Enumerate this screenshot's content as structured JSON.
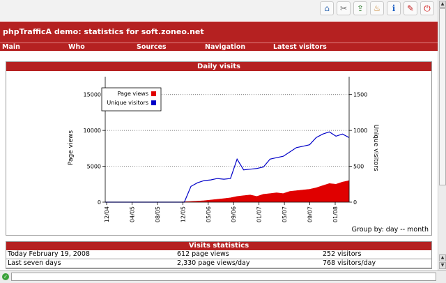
{
  "toolbar": {
    "buttons": [
      {
        "name": "home-icon",
        "glyph": "⌂",
        "color": "#3a6fb5"
      },
      {
        "name": "tools-icon",
        "glyph": "✂",
        "color": "#777777"
      },
      {
        "name": "export-icon",
        "glyph": "⇪",
        "color": "#2a7a2a"
      },
      {
        "name": "cake-icon",
        "glyph": "♨",
        "color": "#c47a1c"
      },
      {
        "name": "info-icon",
        "glyph": "i",
        "color": "#1c5fc4"
      },
      {
        "name": "edit-icon",
        "glyph": "✎",
        "color": "#c42020"
      },
      {
        "name": "power-icon",
        "glyph": "⏻",
        "color": "#d01818"
      }
    ]
  },
  "header": {
    "title": "phpTrafficA demo: statistics for soft.zoneo.net"
  },
  "nav": {
    "items": [
      "Main",
      "Who",
      "Sources",
      "Navigation",
      "Latest visitors"
    ]
  },
  "daily_panel": {
    "title": "Daily visits",
    "group_by": "Group by: day -- month"
  },
  "colors": {
    "page_views": "#e00000",
    "unique_visitors": "#0000c8",
    "accent": "#b52121"
  },
  "chart_data": {
    "type": "area",
    "x_ticks": [
      "12/04",
      "04/05",
      "08/05",
      "12/05",
      "05/06",
      "09/06",
      "01/07",
      "05/07",
      "09/07",
      "01/08"
    ],
    "ylabel": "Page views",
    "ylabel_right": "Unique visitors",
    "ylim": [
      0,
      17500
    ],
    "y_ticks": [
      0,
      5000,
      10000,
      15000
    ],
    "ylim_right": [
      0,
      1750
    ],
    "y_ticks_right": [
      0,
      500,
      1000,
      1500
    ],
    "grid": true,
    "legend_position": "top-left",
    "series": [
      {
        "name": "Page views",
        "axis": "left",
        "values": [
          0,
          0,
          0,
          0,
          0,
          0,
          0,
          0,
          0,
          0,
          0,
          0,
          50,
          100,
          150,
          200,
          300,
          400,
          500,
          600,
          800,
          900,
          1000,
          800,
          1100,
          1200,
          1300,
          1200,
          1500,
          1600,
          1700,
          1800,
          2000,
          2300,
          2600,
          2500,
          2800,
          3000
        ]
      },
      {
        "name": "Unique visitors",
        "axis": "right",
        "values": [
          0,
          0,
          0,
          0,
          0,
          0,
          0,
          0,
          0,
          0,
          0,
          0,
          0,
          220,
          270,
          300,
          310,
          330,
          320,
          330,
          600,
          450,
          460,
          470,
          490,
          600,
          620,
          640,
          700,
          760,
          780,
          800,
          900,
          950,
          980,
          920,
          950,
          900
        ]
      }
    ]
  },
  "stats": {
    "title": "Visits statistics",
    "rows": [
      {
        "label": "Today February 19, 2008",
        "views": "612 page views",
        "visitors": "252 visitors"
      },
      {
        "label": "Last seven days",
        "views": "2,330 page views/day",
        "visitors": "768 visitors/day"
      }
    ]
  }
}
